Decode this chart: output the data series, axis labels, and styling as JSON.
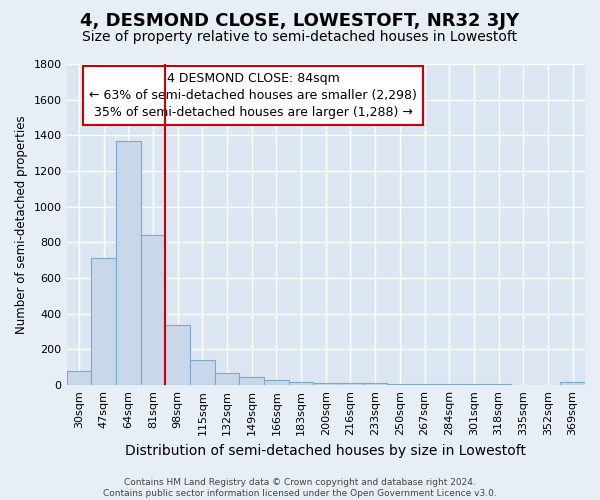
{
  "title": "4, DESMOND CLOSE, LOWESTOFT, NR32 3JY",
  "subtitle": "Size of property relative to semi-detached houses in Lowestoft",
  "xlabel": "Distribution of semi-detached houses by size in Lowestoft",
  "ylabel": "Number of semi-detached properties",
  "categories": [
    "30sqm",
    "47sqm",
    "64sqm",
    "81sqm",
    "98sqm",
    "115sqm",
    "132sqm",
    "149sqm",
    "166sqm",
    "183sqm",
    "200sqm",
    "216sqm",
    "233sqm",
    "250sqm",
    "267sqm",
    "284sqm",
    "301sqm",
    "318sqm",
    "335sqm",
    "352sqm",
    "369sqm"
  ],
  "values": [
    80,
    710,
    1370,
    840,
    340,
    140,
    70,
    45,
    30,
    20,
    15,
    12,
    10,
    8,
    6,
    5,
    4,
    4,
    3,
    3,
    20
  ],
  "bar_color": "#c8d8ea",
  "bar_edge_color": "#7aaac8",
  "property_line_bin": 3,
  "annotation_line1": "4 DESMOND CLOSE: 84sqm",
  "annotation_line2": "← 63% of semi-detached houses are smaller (2,298)",
  "annotation_line3": "35% of semi-detached houses are larger (1,288) →",
  "annotation_box_facecolor": "#ffffff",
  "annotation_box_edgecolor": "#cc0000",
  "property_line_color": "#cc0000",
  "fig_facecolor": "#e8eef5",
  "ax_facecolor": "#dce6f2",
  "grid_color": "#ffffff",
  "ylim": [
    0,
    1800
  ],
  "yticks": [
    0,
    200,
    400,
    600,
    800,
    1000,
    1200,
    1400,
    1600,
    1800
  ],
  "footer_line1": "Contains HM Land Registry data © Crown copyright and database right 2024.",
  "footer_line2": "Contains public sector information licensed under the Open Government Licence v3.0.",
  "title_fontsize": 13,
  "subtitle_fontsize": 10,
  "xlabel_fontsize": 10,
  "ylabel_fontsize": 8.5,
  "tick_fontsize": 8,
  "annotation_fontsize": 9,
  "footer_fontsize": 6.5
}
